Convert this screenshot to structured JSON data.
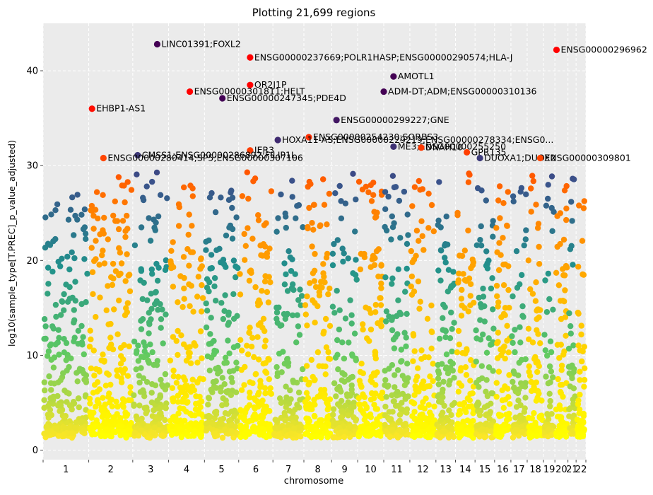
{
  "chart_data": {
    "type": "scatter",
    "title": "Plotting 21,699 regions",
    "xlabel": "chromosome",
    "ylabel": "log10(sample_type[T.PREC]_p_value_adjusted)",
    "ylim": [
      -1,
      45
    ],
    "yticks": [
      0,
      10,
      20,
      30,
      40
    ],
    "grid": true,
    "legend": "none",
    "chromosomes": [
      {
        "label": "1",
        "start": 0,
        "end": 28
      },
      {
        "label": "2",
        "start": 28,
        "end": 55
      },
      {
        "label": "3",
        "start": 55,
        "end": 77
      },
      {
        "label": "4",
        "start": 77,
        "end": 99
      },
      {
        "label": "5",
        "start": 99,
        "end": 120
      },
      {
        "label": "6",
        "start": 120,
        "end": 141
      },
      {
        "label": "7",
        "start": 141,
        "end": 160
      },
      {
        "label": "8",
        "start": 160,
        "end": 177
      },
      {
        "label": "9",
        "start": 177,
        "end": 193
      },
      {
        "label": "10",
        "start": 193,
        "end": 209
      },
      {
        "label": "11",
        "start": 209,
        "end": 225
      },
      {
        "label": "12",
        "start": 225,
        "end": 241
      },
      {
        "label": "13",
        "start": 241,
        "end": 253
      },
      {
        "label": "14",
        "start": 253,
        "end": 265
      },
      {
        "label": "15",
        "start": 265,
        "end": 277
      },
      {
        "label": "16",
        "start": 277,
        "end": 287
      },
      {
        "label": "17",
        "start": 287,
        "end": 297
      },
      {
        "label": "18",
        "start": 297,
        "end": 307
      },
      {
        "label": "19",
        "start": 307,
        "end": 314
      },
      {
        "label": "20",
        "start": 314,
        "end": 322
      },
      {
        "label": "21",
        "start": 322,
        "end": 327
      },
      {
        "label": "22",
        "start": 327,
        "end": 333
      }
    ],
    "points": [
      {
        "x": 70,
        "y": 42.8,
        "label": "LINC01391;FOXL2"
      },
      {
        "x": 127,
        "y": 41.4,
        "label": "ENSG00000237669;POLR1HASP;ENSG00000290574;HLA-J"
      },
      {
        "x": 315,
        "y": 42.2,
        "label": "ENSG00000296962"
      },
      {
        "x": 127,
        "y": 38.5,
        "label": "OR2J1P"
      },
      {
        "x": 90,
        "y": 37.8,
        "label": "ENSG00000301811;HELT"
      },
      {
        "x": 110,
        "y": 37.1,
        "label": "ENSG00000247345;PDE4D"
      },
      {
        "x": 215,
        "y": 39.4,
        "label": "AMOTL1"
      },
      {
        "x": 209,
        "y": 37.8,
        "label": "ADM-DT;ADM;ENSG00000310136"
      },
      {
        "x": 30,
        "y": 36.0,
        "label": "EHBP1-AS1"
      },
      {
        "x": 180,
        "y": 34.8,
        "label": "ENSG00000299227;GNE"
      },
      {
        "x": 163,
        "y": 33.0,
        "label": "ENSG00000254230;SORBS3"
      },
      {
        "x": 144,
        "y": 32.7,
        "label": "HOXA11-AS;ENSG00000229219;ENSG00000278334;ENSG0..."
      },
      {
        "x": 215,
        "y": 32.0,
        "label": "ME3;ENSG00000255250"
      },
      {
        "x": 232,
        "y": 31.9,
        "label": "DNAH10"
      },
      {
        "x": 127,
        "y": 31.6,
        "label": "IER3"
      },
      {
        "x": 260,
        "y": 31.4,
        "label": "GPR135"
      },
      {
        "x": 58,
        "y": 31.1,
        "label": "CMSS1;ENSG00000286892;FILIP1L"
      },
      {
        "x": 37,
        "y": 30.8,
        "label": "ENSG00000280414;SP5;ENSG00000307106"
      },
      {
        "x": 268,
        "y": 30.8,
        "label": "DUOXA1;DUOX2"
      },
      {
        "x": 305,
        "y": 30.8,
        "label": "ENSG00000309801"
      }
    ],
    "color_scale": [
      "#440154",
      "#3b528b",
      "#21918c",
      "#5ec962",
      "#fde725"
    ],
    "alternate_scale": [
      "#ff0000",
      "#ff7f00",
      "#ffc800",
      "#ffff00"
    ],
    "baseline": 1.3
  }
}
